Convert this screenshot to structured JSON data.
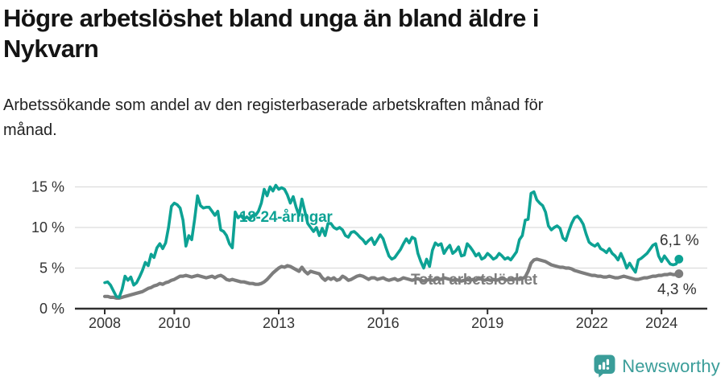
{
  "header": {
    "title": "Högre arbetslöshet bland unga än bland äldre i\nNykvarn",
    "subtitle": "Arbetssökande som andel av den registerbaserade arbetskraften månad för\nmånad."
  },
  "chart_data": {
    "type": "line",
    "title": "Högre arbetslöshet bland unga än bland äldre i Nykvarn",
    "subtitle": "Arbetssökande som andel av den registerbaserade arbetskraften månad för månad.",
    "x_start": "2008-01",
    "x_freq": "monthly",
    "x_end": "2024-07",
    "x_ticks": [
      2008,
      2010,
      2013,
      2016,
      2019,
      2022,
      2024
    ],
    "y_ticks": [
      0,
      5,
      10,
      15
    ],
    "y_tick_suffix": " %",
    "ylim": [
      0,
      15.5
    ],
    "grid": "horizontal",
    "axis_color": "#2f2f2f",
    "grid_color": "#dcdcdc",
    "tick_label_color": "#333333",
    "end_label_color": "#333333",
    "series": [
      {
        "name": "18-24-åringar",
        "color": "#0da294",
        "end_label": "6,1 %",
        "end_value": 6.1,
        "values": [
          3.2,
          3.3,
          2.9,
          2.2,
          1.5,
          1.4,
          2.4,
          4.0,
          3.5,
          3.9,
          2.9,
          3.2,
          3.9,
          4.7,
          5.7,
          5.3,
          6.7,
          6.3,
          7.5,
          8.0,
          7.4,
          8.1,
          10.0,
          12.6,
          13.0,
          12.8,
          12.4,
          10.9,
          7.7,
          9.0,
          8.5,
          11.0,
          13.9,
          12.7,
          12.4,
          12.5,
          12.5,
          12.0,
          11.5,
          12.0,
          9.7,
          9.5,
          9.0,
          8.0,
          7.5,
          11.9,
          11.2,
          11.5,
          11.0,
          11.3,
          11.0,
          11.5,
          11.5,
          12.0,
          13.0,
          14.7,
          13.9,
          15.0,
          14.5,
          15.2,
          14.7,
          14.9,
          14.7,
          14.0,
          13.0,
          13.8,
          12.5,
          11.5,
          13.5,
          12.0,
          10.5,
          10.0,
          9.5,
          10.0,
          9.0,
          9.9,
          9.0,
          10.5,
          10.5,
          10.0,
          9.8,
          10.0,
          9.7,
          9.0,
          8.8,
          9.4,
          9.5,
          9.2,
          8.8,
          8.5,
          8.0,
          8.4,
          8.7,
          7.9,
          8.5,
          9.1,
          8.6,
          7.5,
          6.5,
          6.1,
          6.3,
          6.8,
          7.3,
          8.0,
          8.6,
          8.1,
          8.8,
          8.6,
          6.8,
          5.8,
          5.0,
          6.1,
          5.2,
          7.2,
          8.1,
          7.8,
          8.0,
          6.8,
          7.4,
          7.8,
          6.8,
          7.1,
          7.6,
          6.5,
          6.6,
          8.0,
          7.6,
          7.1,
          6.5,
          6.8,
          6.1,
          6.3,
          6.8,
          6.5,
          6.1,
          6.3,
          6.8,
          6.5,
          6.1,
          6.3,
          6.0,
          6.5,
          7.0,
          8.5,
          9.0,
          10.9,
          11.0,
          14.2,
          14.4,
          13.4,
          13.0,
          12.7,
          11.9,
          10.2,
          9.7,
          10.0,
          10.2,
          9.9,
          8.7,
          8.4,
          9.5,
          10.5,
          11.2,
          11.4,
          11.0,
          10.4,
          9.2,
          8.2,
          7.9,
          7.7,
          8.0,
          7.4,
          7.2,
          6.9,
          7.4,
          6.8,
          6.5,
          6.0,
          6.8,
          6.0,
          5.0,
          5.6,
          5.0,
          4.5,
          6.0,
          6.2,
          6.5,
          6.8,
          7.3,
          7.8,
          8.0,
          6.5,
          5.8,
          6.5,
          6.0,
          5.5,
          5.4,
          5.5,
          6.1
        ]
      },
      {
        "name": "Total arbetslöshet",
        "color": "#7d7d7d",
        "end_label": "4,3 %",
        "end_value": 4.3,
        "values": [
          1.5,
          1.5,
          1.4,
          1.4,
          1.3,
          1.3,
          1.4,
          1.5,
          1.6,
          1.7,
          1.8,
          1.9,
          2.0,
          2.1,
          2.3,
          2.5,
          2.6,
          2.8,
          2.9,
          3.1,
          3.0,
          3.2,
          3.3,
          3.5,
          3.6,
          3.8,
          4.0,
          4.0,
          4.1,
          4.0,
          3.9,
          4.0,
          4.1,
          4.0,
          3.9,
          3.8,
          3.9,
          4.0,
          3.8,
          4.0,
          4.1,
          3.9,
          3.6,
          3.5,
          3.6,
          3.5,
          3.4,
          3.3,
          3.3,
          3.2,
          3.1,
          3.1,
          3.0,
          3.0,
          3.1,
          3.3,
          3.6,
          4.0,
          4.4,
          4.7,
          5.0,
          5.2,
          5.1,
          5.3,
          5.2,
          5.0,
          4.8,
          4.6,
          5.1,
          4.6,
          4.3,
          4.6,
          4.5,
          4.4,
          4.3,
          3.8,
          3.5,
          3.8,
          3.6,
          3.8,
          3.5,
          3.6,
          4.0,
          3.8,
          3.5,
          3.6,
          3.8,
          4.0,
          4.1,
          4.0,
          3.8,
          3.6,
          3.8,
          3.8,
          3.6,
          3.7,
          3.8,
          3.6,
          3.5,
          3.6,
          3.7,
          3.5,
          3.6,
          3.8,
          3.7,
          3.6,
          3.5,
          3.6,
          3.7,
          3.5,
          3.4,
          3.5,
          3.6,
          3.5,
          3.6,
          3.7,
          3.6,
          3.8,
          3.7,
          3.6,
          3.5,
          3.6,
          3.5,
          3.4,
          3.5,
          3.6,
          3.5,
          3.6,
          3.5,
          3.8,
          3.6,
          3.5,
          3.6,
          3.5,
          3.6,
          3.5,
          3.6,
          3.7,
          3.6,
          3.5,
          3.6,
          3.6,
          3.7,
          3.6,
          3.7,
          3.9,
          4.6,
          5.6,
          6.0,
          6.1,
          6.0,
          5.9,
          5.8,
          5.6,
          5.4,
          5.3,
          5.2,
          5.1,
          5.1,
          5.0,
          5.0,
          4.9,
          4.7,
          4.6,
          4.5,
          4.4,
          4.3,
          4.2,
          4.1,
          4.1,
          4.0,
          4.0,
          3.9,
          3.9,
          4.0,
          3.9,
          3.8,
          3.8,
          3.9,
          4.0,
          3.9,
          3.8,
          3.7,
          3.6,
          3.6,
          3.7,
          3.8,
          3.8,
          3.9,
          4.0,
          4.0,
          4.1,
          4.1,
          4.2,
          4.2,
          4.3,
          4.2,
          4.2,
          4.3
        ]
      }
    ]
  },
  "footer": {
    "brand": "Newsworthy",
    "brand_color": "#3a9d99",
    "logo_icon": "bar-chart-speech-bubble"
  }
}
